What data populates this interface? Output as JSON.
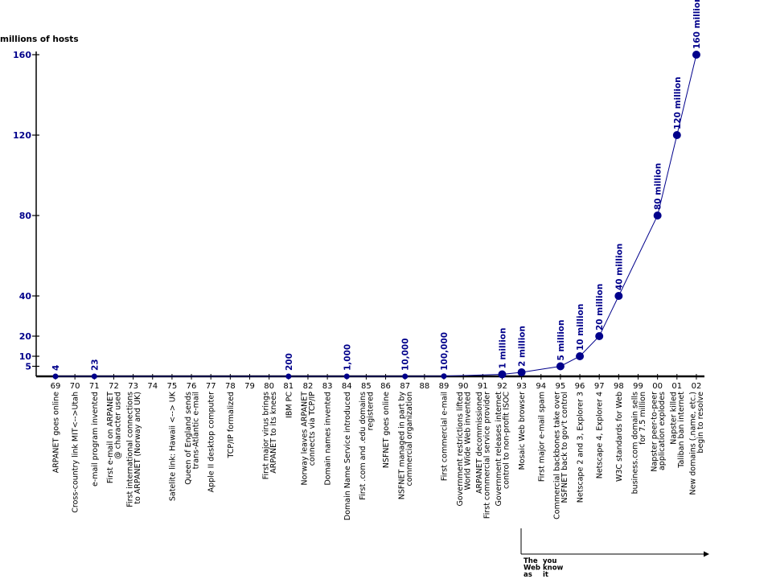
{
  "chart_data": {
    "type": "line",
    "ylabel": "millions of hosts",
    "y_ticks": [
      {
        "value": 5,
        "label": "5"
      },
      {
        "value": 10,
        "label": "10"
      },
      {
        "value": 20,
        "label": "20"
      },
      {
        "value": 40,
        "label": "40"
      },
      {
        "value": 80,
        "label": "80"
      },
      {
        "value": 120,
        "label": "120"
      },
      {
        "value": 160,
        "label": "160"
      }
    ],
    "ylim": [
      0,
      160
    ],
    "x_categories": [
      "69",
      "70",
      "71",
      "72",
      "73",
      "74",
      "75",
      "76",
      "77",
      "78",
      "79",
      "80",
      "81",
      "82",
      "83",
      "84",
      "85",
      "86",
      "87",
      "88",
      "89",
      "90",
      "91",
      "92",
      "93",
      "94",
      "95",
      "96",
      "97",
      "98",
      "99",
      "00",
      "01",
      "02"
    ],
    "series": [
      {
        "points": [
          {
            "x": "69",
            "y": 4e-06,
            "label": "4"
          },
          {
            "x": "71",
            "y": 2.3e-05,
            "label": "23"
          },
          {
            "x": "81",
            "y": 0.0002,
            "label": "200"
          },
          {
            "x": "84",
            "y": 0.001,
            "label": "1,000"
          },
          {
            "x": "87",
            "y": 0.01,
            "label": "10,000"
          },
          {
            "x": "89",
            "y": 0.1,
            "label": "100,000"
          },
          {
            "x": "92",
            "y": 1,
            "label": "1 million"
          },
          {
            "x": "93",
            "y": 2,
            "label": "2 million"
          },
          {
            "x": "95",
            "y": 5,
            "label": "5 million"
          },
          {
            "x": "96",
            "y": 10,
            "label": "10 million"
          },
          {
            "x": "97",
            "y": 20,
            "label": "20 million"
          },
          {
            "x": "98",
            "y": 40,
            "label": "40 million"
          },
          {
            "x": "00",
            "y": 80,
            "label": "80 million"
          },
          {
            "x": "01",
            "y": 120,
            "label": "120 million"
          },
          {
            "x": "02",
            "y": 160,
            "label": "160 million"
          }
        ]
      }
    ],
    "events": [
      {
        "x": "69",
        "lines": [
          "ARPANET goes online"
        ]
      },
      {
        "x": "70",
        "lines": [
          "Cross-country link MIT<-->Utah"
        ]
      },
      {
        "x": "71",
        "lines": [
          "e-mail program invented"
        ]
      },
      {
        "x": "72",
        "lines": [
          "First e-mail on ARPANET",
          "@ character used"
        ]
      },
      {
        "x": "73",
        "lines": [
          "First international connections",
          "to ARPANET (Norway and UK)"
        ]
      },
      {
        "x": "75",
        "lines": [
          "Satelite link: Hawaii <--> UK"
        ]
      },
      {
        "x": "76",
        "lines": [
          "Queen of England sends",
          "trans-Atlantic e-mail"
        ]
      },
      {
        "x": "77",
        "lines": [
          "Apple II desktop computer"
        ]
      },
      {
        "x": "78",
        "lines": [
          "TCP/IP formalized"
        ]
      },
      {
        "x": "80",
        "lines": [
          "First major virus brings",
          "ARPANET to its knees"
        ]
      },
      {
        "x": "81",
        "lines": [
          "IBM PC"
        ]
      },
      {
        "x": "82",
        "lines": [
          "Norway leaves ARPANET",
          "connects via TCP/IP"
        ]
      },
      {
        "x": "83",
        "lines": [
          "Domain names invented"
        ]
      },
      {
        "x": "84",
        "lines": [
          "Domain Name Service introduced"
        ]
      },
      {
        "x": "85",
        "lines": [
          "First .com and .edu domains",
          "registered"
        ]
      },
      {
        "x": "86",
        "lines": [
          "NSFNET goes online"
        ]
      },
      {
        "x": "87",
        "lines": [
          "NSFNET managed in part by",
          "commercial organization"
        ]
      },
      {
        "x": "89",
        "lines": [
          "First commercial e-mail"
        ]
      },
      {
        "x": "90",
        "lines": [
          "Government restrictions lifted",
          "World Wide Web invented"
        ]
      },
      {
        "x": "91",
        "lines": [
          "ARPANET decommissioned",
          "First commercial service provider"
        ]
      },
      {
        "x": "92",
        "lines": [
          "Government releases internet",
          "control to non-profit ISOC"
        ]
      },
      {
        "x": "93",
        "lines": [
          "Mosaic Web browser"
        ]
      },
      {
        "x": "94",
        "lines": [
          "First major e-mail spam"
        ]
      },
      {
        "x": "95",
        "lines": [
          "Commercial backbones take over",
          "NSFNET back to gov't control"
        ]
      },
      {
        "x": "96",
        "lines": [
          "Netscape 2 and 3, Explorer 3"
        ]
      },
      {
        "x": "97",
        "lines": [
          "Netscape 4, Explorer 4"
        ]
      },
      {
        "x": "98",
        "lines": [
          "W3C standards for Web"
        ]
      },
      {
        "x": "99",
        "lines": [
          "business.com domain sells",
          "for 7.5 million"
        ]
      },
      {
        "x": "00",
        "lines": [
          "Napster peer-to-peer",
          "application explodes"
        ]
      },
      {
        "x": "01",
        "lines": [
          "Napster killed",
          "Taliban ban internet"
        ]
      },
      {
        "x": "02",
        "lines": [
          "New domains (.name, etc.)",
          "begin to resolve"
        ]
      }
    ],
    "era_label": [
      "The",
      "Web",
      "as",
      "you",
      "know",
      "it"
    ],
    "colors": {
      "axis": "#000000",
      "series": "#00008b",
      "ytick_label": "#00008b",
      "event_text": "#000000"
    }
  }
}
